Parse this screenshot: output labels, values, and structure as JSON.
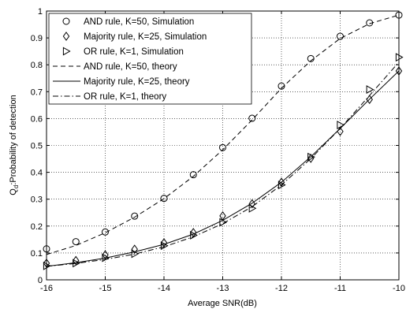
{
  "chart_data": {
    "type": "line",
    "xlabel": "Average SNR(dB)",
    "ylabel_main": "Q",
    "ylabel_sub": "d",
    "ylabel_rest": ":Probability of detection",
    "xlim": [
      -16,
      -10
    ],
    "ylim": [
      0,
      1
    ],
    "grid": true,
    "legend_position": "top-left",
    "x_ticks": [
      -16,
      -15,
      -14,
      -13,
      -12,
      -11,
      -10
    ],
    "x_tick_labels": [
      "-16",
      "-15",
      "-14",
      "-13",
      "-12",
      "-11",
      "-10"
    ],
    "y_ticks": [
      0,
      0.1,
      0.2,
      0.3,
      0.4,
      0.5,
      0.6,
      0.7,
      0.8,
      0.9,
      1
    ],
    "y_tick_labels": [
      "0",
      "0.1",
      "0.2",
      "0.3",
      "0.4",
      "0.5",
      "0.6",
      "0.7",
      "0.8",
      "0.9",
      "1"
    ],
    "series": [
      {
        "name": "AND rule,  K=50,  Simulation",
        "kind": "marker",
        "marker": "circle",
        "x": [
          -16,
          -15.5,
          -15,
          -14.5,
          -14,
          -13.5,
          -13,
          -12.5,
          -12,
          -11.5,
          -11,
          -10.5,
          -10
        ],
        "values": [
          0.115,
          0.142,
          0.178,
          0.237,
          0.303,
          0.391,
          0.492,
          0.601,
          0.721,
          0.823,
          0.906,
          0.956,
          0.985
        ]
      },
      {
        "name": "Majority rule,  K=25,  Simulation",
        "kind": "marker",
        "marker": "diamond",
        "x": [
          -16,
          -15.5,
          -15,
          -14.5,
          -14,
          -13.5,
          -13,
          -12.5,
          -12,
          -11.5,
          -11,
          -10.5,
          -10
        ],
        "values": [
          0.062,
          0.072,
          0.093,
          0.114,
          0.138,
          0.176,
          0.238,
          0.283,
          0.363,
          0.452,
          0.552,
          0.671,
          0.777
        ]
      },
      {
        "name": "OR rule,  K=1,  Simulation",
        "kind": "marker",
        "marker": "triangle-right",
        "x": [
          -16,
          -15.5,
          -15,
          -14.5,
          -14,
          -13.5,
          -13,
          -12.5,
          -12,
          -11.5,
          -11,
          -10.5,
          -10
        ],
        "values": [
          0.052,
          0.062,
          0.082,
          0.097,
          0.127,
          0.166,
          0.214,
          0.266,
          0.353,
          0.457,
          0.576,
          0.708,
          0.828
        ]
      },
      {
        "name": "AND rule,  K=50,  theory",
        "kind": "line",
        "dash": "dashed",
        "x": [
          -16,
          -15.5,
          -15,
          -14.5,
          -14,
          -13.5,
          -13,
          -12.5,
          -12,
          -11.5,
          -11,
          -10.5,
          -10
        ],
        "values": [
          0.094,
          0.128,
          0.175,
          0.233,
          0.302,
          0.385,
          0.484,
          0.595,
          0.713,
          0.815,
          0.898,
          0.953,
          0.985
        ]
      },
      {
        "name": "Majority rule,  K=25,  theory",
        "kind": "line",
        "dash": "solid",
        "x": [
          -16,
          -15.5,
          -15,
          -14.5,
          -14,
          -13.5,
          -13,
          -12.5,
          -12,
          -11.5,
          -11,
          -10.5,
          -10
        ],
        "values": [
          0.05,
          0.064,
          0.081,
          0.104,
          0.132,
          0.17,
          0.221,
          0.285,
          0.363,
          0.458,
          0.563,
          0.672,
          0.777
        ]
      },
      {
        "name": "OR rule,  K=1,  theory",
        "kind": "line",
        "dash": "dashdot",
        "x": [
          -16,
          -15.5,
          -15,
          -14.5,
          -14,
          -13.5,
          -13,
          -12.5,
          -12,
          -11.5,
          -11,
          -10.5,
          -10
        ],
        "values": [
          0.05,
          0.061,
          0.076,
          0.096,
          0.123,
          0.16,
          0.209,
          0.272,
          0.353,
          0.451,
          0.563,
          0.686,
          0.81
        ]
      }
    ]
  }
}
